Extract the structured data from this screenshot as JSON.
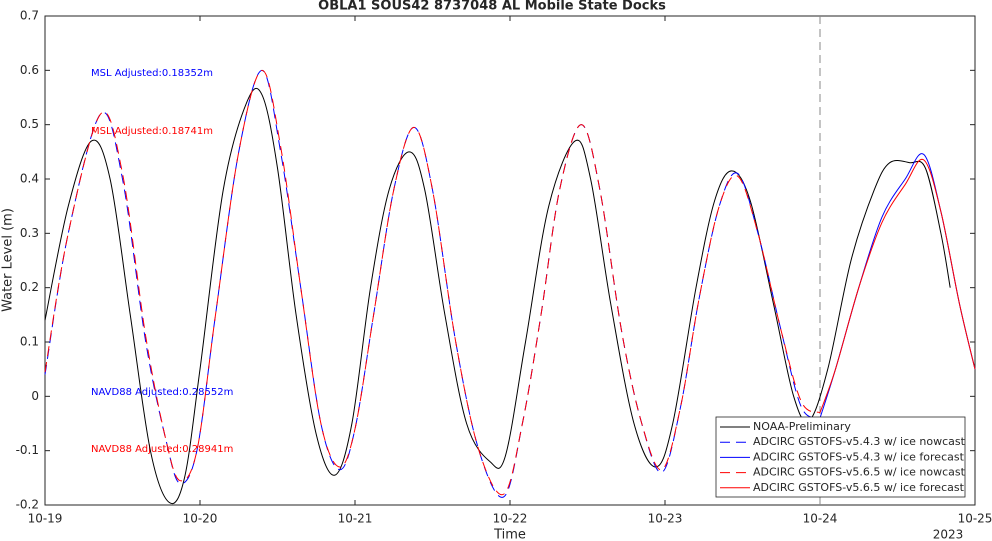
{
  "chart_data": {
    "type": "line",
    "title": "OBLA1 SOUS42 8737048 AL Mobile State Docks",
    "xlabel": "Time",
    "ylabel": "Water Level (m)",
    "x_annotation": "2023",
    "xlim": [
      19,
      25
    ],
    "xticks": [
      {
        "value": 19,
        "label": "10-19"
      },
      {
        "value": 20,
        "label": "10-20"
      },
      {
        "value": 21,
        "label": "10-21"
      },
      {
        "value": 22,
        "label": "10-22"
      },
      {
        "value": 23,
        "label": "10-23"
      },
      {
        "value": 24,
        "label": "10-24"
      },
      {
        "value": 25,
        "label": "10-25"
      }
    ],
    "ylim": [
      -0.2,
      0.7
    ],
    "yticks": [
      -0.2,
      -0.1,
      0,
      0.1,
      0.2,
      0.3,
      0.4,
      0.5,
      0.6,
      0.7
    ],
    "vline": 24,
    "legend": "lower right",
    "annotations": [
      {
        "text": "MSL Adjusted:0.18352m",
        "color": "#0000ff"
      },
      {
        "text": "MSL Adjusted:0.18741m",
        "color": "#ff0000"
      },
      {
        "text": "NAVD88 Adjusted:0.28552m",
        "color": "#0000ff"
      },
      {
        "text": "NAVD88 Adjusted:0.28941m",
        "color": "#ff0000"
      }
    ],
    "series": [
      {
        "name": "NOAA-Preliminary",
        "color": "#000000",
        "dash": "solid",
        "x": [
          19.0,
          19.15,
          19.3,
          19.42,
          19.55,
          19.68,
          19.8,
          19.9,
          20.0,
          20.15,
          20.3,
          20.4,
          20.5,
          20.62,
          20.75,
          20.87,
          20.98,
          21.1,
          21.22,
          21.35,
          21.45,
          21.58,
          21.72,
          21.87,
          21.97,
          22.1,
          22.25,
          22.42,
          22.52,
          22.65,
          22.8,
          22.94,
          23.05,
          23.2,
          23.32,
          23.43,
          23.55,
          23.7,
          23.83,
          23.93,
          24.05,
          24.2,
          24.35,
          24.45,
          24.58,
          24.68,
          24.78,
          24.84
        ],
        "values": [
          0.14,
          0.35,
          0.47,
          0.4,
          0.15,
          -0.1,
          -0.195,
          -0.15,
          0.05,
          0.38,
          0.54,
          0.555,
          0.42,
          0.15,
          -0.07,
          -0.145,
          -0.05,
          0.2,
          0.38,
          0.45,
          0.38,
          0.15,
          -0.05,
          -0.12,
          -0.11,
          0.1,
          0.35,
          0.47,
          0.4,
          0.17,
          -0.05,
          -0.13,
          -0.05,
          0.2,
          0.36,
          0.415,
          0.36,
          0.17,
          0.0,
          -0.045,
          0.05,
          0.25,
          0.38,
          0.43,
          0.43,
          0.42,
          0.3,
          0.2
        ]
      },
      {
        "name": "ADCIRC GSTOFS-v5.4.3 w/ ice nowcast",
        "color": "#0000ff",
        "dash": "dashed",
        "x": [
          19.0,
          19.15,
          19.36,
          19.5,
          19.65,
          19.78,
          19.87,
          19.98,
          20.1,
          20.25,
          20.4,
          20.52,
          20.65,
          20.78,
          20.9,
          21.0,
          21.12,
          21.25,
          21.38,
          21.5,
          21.65,
          21.8,
          21.96,
          22.08,
          22.2,
          22.32,
          22.46,
          22.58,
          22.72,
          22.85,
          22.98,
          23.1,
          23.22,
          23.35,
          23.47,
          23.6,
          23.75,
          23.88,
          24.0
        ],
        "values": [
          0.04,
          0.3,
          0.52,
          0.4,
          0.1,
          -0.08,
          -0.16,
          -0.1,
          0.15,
          0.45,
          0.6,
          0.45,
          0.2,
          -0.05,
          -0.135,
          -0.06,
          0.15,
          0.38,
          0.495,
          0.38,
          0.1,
          -0.1,
          -0.185,
          -0.05,
          0.15,
          0.38,
          0.5,
          0.38,
          0.12,
          -0.05,
          -0.14,
          -0.02,
          0.18,
          0.35,
          0.41,
          0.3,
          0.12,
          -0.02,
          -0.04
        ]
      },
      {
        "name": "ADCIRC GSTOFS-v5.4.3 w/ ice forecast",
        "color": "#0000ff",
        "dash": "solid",
        "x": [
          24.0,
          24.1,
          24.25,
          24.4,
          24.55,
          24.67,
          24.78,
          24.9,
          25.0
        ],
        "values": [
          -0.04,
          0.05,
          0.2,
          0.33,
          0.4,
          0.445,
          0.34,
          0.17,
          0.05
        ]
      },
      {
        "name": "ADCIRC GSTOFS-v5.6.5 w/ ice nowcast",
        "color": "#ff0000",
        "dash": "dashed",
        "x": [
          19.0,
          19.15,
          19.36,
          19.5,
          19.65,
          19.78,
          19.87,
          19.98,
          20.1,
          20.25,
          20.4,
          20.52,
          20.65,
          20.78,
          20.9,
          21.0,
          21.12,
          21.25,
          21.38,
          21.5,
          21.65,
          21.8,
          21.96,
          22.08,
          22.2,
          22.32,
          22.46,
          22.58,
          22.72,
          22.85,
          22.98,
          23.1,
          23.22,
          23.35,
          23.47,
          23.6,
          23.75,
          23.88,
          24.0
        ],
        "values": [
          0.045,
          0.3,
          0.52,
          0.41,
          0.11,
          -0.08,
          -0.155,
          -0.1,
          0.15,
          0.45,
          0.6,
          0.46,
          0.2,
          -0.05,
          -0.13,
          -0.06,
          0.15,
          0.38,
          0.495,
          0.38,
          0.1,
          -0.1,
          -0.18,
          -0.05,
          0.15,
          0.38,
          0.5,
          0.38,
          0.12,
          -0.05,
          -0.135,
          -0.02,
          0.18,
          0.35,
          0.405,
          0.3,
          0.12,
          -0.01,
          -0.03
        ]
      },
      {
        "name": "ADCIRC GSTOFS-v5.6.5 w/ ice forecast",
        "color": "#ff0000",
        "dash": "solid",
        "x": [
          24.0,
          24.1,
          24.25,
          24.4,
          24.55,
          24.67,
          24.78,
          24.9,
          25.0
        ],
        "values": [
          -0.03,
          0.05,
          0.2,
          0.32,
          0.39,
          0.435,
          0.34,
          0.17,
          0.05
        ]
      }
    ]
  }
}
